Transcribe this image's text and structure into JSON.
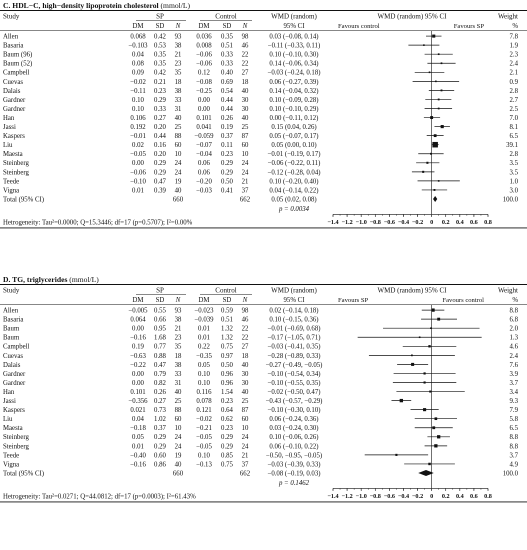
{
  "chart_data": [
    {
      "type": "forest",
      "title_bold": "C. HDL−C, high−density lipoprotein cholesterol",
      "title_unit": " (mmol/L)",
      "group_headers": [
        "SP",
        "Control",
        "WMD (random)",
        "WMD (random) 95% CI",
        "Weight"
      ],
      "col_headers": [
        "Study",
        "DM",
        "SD",
        "N",
        "DM",
        "SD",
        "N",
        "95% CI",
        "%"
      ],
      "favours_left": "Favours control",
      "favours_right": "Favours SP",
      "xlim": [
        -1.4,
        0.8
      ],
      "ticks": [
        -1.4,
        -1.2,
        -1.0,
        -0.8,
        -0.6,
        -0.4,
        -0.2,
        0,
        0.2,
        0.4,
        0.6,
        0.8
      ],
      "tick_labels": [
        "−1.4",
        "−1.2",
        "−1.0",
        "−0.8",
        "−0.6",
        "−0.4",
        "−0.2",
        "0",
        "0.2",
        "0.4",
        "0.6",
        "0.8"
      ],
      "studies": [
        {
          "name": "Allen",
          "sp_dm": "0.068",
          "sp_sd": "0.42",
          "sp_n": "93",
          "c_dm": "0.036",
          "c_sd": "0.35",
          "c_n": "98",
          "ci_text": "0.03 (−0.08, 0.14)",
          "weight": "7.8",
          "est": 0.03,
          "lo": -0.08,
          "hi": 0.14
        },
        {
          "name": "Basaria",
          "sp_dm": "−0.103",
          "sp_sd": "0.53",
          "sp_n": "38",
          "c_dm": "0.008",
          "c_sd": "0.51",
          "c_n": "46",
          "ci_text": "−0.11 (−0.33, 0.11)",
          "weight": "1.9",
          "est": -0.11,
          "lo": -0.33,
          "hi": 0.11
        },
        {
          "name": "Baum (96)",
          "sp_dm": "0.04",
          "sp_sd": "0.35",
          "sp_n": "21",
          "c_dm": "−0.06",
          "c_sd": "0.33",
          "c_n": "22",
          "ci_text": "0.10 (−0.10, 0.30)",
          "weight": "2.3",
          "est": 0.1,
          "lo": -0.1,
          "hi": 0.3
        },
        {
          "name": "Baum (52)",
          "sp_dm": "0.08",
          "sp_sd": "0.35",
          "sp_n": "23",
          "c_dm": "−0.06",
          "c_sd": "0.33",
          "c_n": "22",
          "ci_text": "0.14 (−0.06, 0.34)",
          "weight": "2.4",
          "est": 0.14,
          "lo": -0.06,
          "hi": 0.34
        },
        {
          "name": "Campbell",
          "sp_dm": "0.09",
          "sp_sd": "0.42",
          "sp_n": "35",
          "c_dm": "0.12",
          "c_sd": "0.40",
          "c_n": "27",
          "ci_text": "−0.03 (−0.24, 0.18)",
          "weight": "2.1",
          "est": -0.03,
          "lo": -0.24,
          "hi": 0.18
        },
        {
          "name": "Cuevas",
          "sp_dm": "−0.02",
          "sp_sd": "0.21",
          "sp_n": "18",
          "c_dm": "−0.08",
          "c_sd": "0.69",
          "c_n": "18",
          "ci_text": "0.06 (−0.27, 0.39)",
          "weight": "0.9",
          "est": 0.06,
          "lo": -0.27,
          "hi": 0.39
        },
        {
          "name": "Dalais",
          "sp_dm": "−0.11",
          "sp_sd": "0.23",
          "sp_n": "38",
          "c_dm": "−0.25",
          "c_sd": "0.54",
          "c_n": "40",
          "ci_text": "0.14 (−0.04, 0.32)",
          "weight": "2.8",
          "est": 0.14,
          "lo": -0.04,
          "hi": 0.32
        },
        {
          "name": "Gardner",
          "sp_dm": "0.10",
          "sp_sd": "0.29",
          "sp_n": "33",
          "c_dm": "0.00",
          "c_sd": "0.44",
          "c_n": "30",
          "ci_text": "0.10 (−0.09, 0.28)",
          "weight": "2.7",
          "est": 0.1,
          "lo": -0.09,
          "hi": 0.28
        },
        {
          "name": "Gardner",
          "sp_dm": "0.10",
          "sp_sd": "0.33",
          "sp_n": "31",
          "c_dm": "0.00",
          "c_sd": "0.44",
          "c_n": "30",
          "ci_text": "0.10 (−0.10, 0.29)",
          "weight": "2.5",
          "est": 0.1,
          "lo": -0.1,
          "hi": 0.29
        },
        {
          "name": "Han",
          "sp_dm": "0.106",
          "sp_sd": "0.27",
          "sp_n": "40",
          "c_dm": "0.101",
          "c_sd": "0.26",
          "c_n": "40",
          "ci_text": "0.00 (−0.11, 0.12)",
          "weight": "7.0",
          "est": 0.0,
          "lo": -0.11,
          "hi": 0.12
        },
        {
          "name": "Jassi",
          "sp_dm": "0.192",
          "sp_sd": "0.20",
          "sp_n": "25",
          "c_dm": "0.041",
          "c_sd": "0.19",
          "c_n": "25",
          "ci_text": "0.15 (0.04, 0.26)",
          "weight": "8.1",
          "est": 0.15,
          "lo": 0.04,
          "hi": 0.26
        },
        {
          "name": "Kaspers",
          "sp_dm": "−0.01",
          "sp_sd": "0.44",
          "sp_n": "88",
          "c_dm": "−0.059",
          "c_sd": "0.37",
          "c_n": "87",
          "ci_text": "0.05 (−0.07, 0.17)",
          "weight": "6.5",
          "est": 0.05,
          "lo": -0.07,
          "hi": 0.17
        },
        {
          "name": "Liu",
          "sp_dm": "0.02",
          "sp_sd": "0.16",
          "sp_n": "60",
          "c_dm": "−0.07",
          "c_sd": "0.11",
          "c_n": "60",
          "ci_text": "0.05 (0.00, 0.10)",
          "weight": "39.1",
          "est": 0.05,
          "lo": 0.0,
          "hi": 0.1
        },
        {
          "name": "Maesta",
          "sp_dm": "−0.05",
          "sp_sd": "0.20",
          "sp_n": "10",
          "c_dm": "−0.04",
          "c_sd": "0.23",
          "c_n": "10",
          "ci_text": "−0.01 (−0.19, 0.17)",
          "weight": "2.8",
          "est": -0.01,
          "lo": -0.19,
          "hi": 0.17
        },
        {
          "name": "Steinberg",
          "sp_dm": "0.00",
          "sp_sd": "0.29",
          "sp_n": "24",
          "c_dm": "0.06",
          "c_sd": "0.29",
          "c_n": "24",
          "ci_text": "−0.06 (−0.22, 0.11)",
          "weight": "3.5",
          "est": -0.06,
          "lo": -0.22,
          "hi": 0.11
        },
        {
          "name": "Steinberg",
          "sp_dm": "−0.06",
          "sp_sd": "0.29",
          "sp_n": "24",
          "c_dm": "0.06",
          "c_sd": "0.29",
          "c_n": "24",
          "ci_text": "−0.12 (−0.28, 0.04)",
          "weight": "3.5",
          "est": -0.12,
          "lo": -0.28,
          "hi": 0.04
        },
        {
          "name": "Teede",
          "sp_dm": "−0.10",
          "sp_sd": "0.47",
          "sp_n": "19",
          "c_dm": "−0.20",
          "c_sd": "0.50",
          "c_n": "21",
          "ci_text": "0.10 (−0.20, 0.40)",
          "weight": "1.0",
          "est": 0.1,
          "lo": -0.2,
          "hi": 0.4
        },
        {
          "name": "Vigna",
          "sp_dm": "0.01",
          "sp_sd": "0.39",
          "sp_n": "40",
          "c_dm": "−0.03",
          "c_sd": "0.41",
          "c_n": "37",
          "ci_text": "0.04 (−0.14, 0.22)",
          "weight": "3.0",
          "est": 0.04,
          "lo": -0.14,
          "hi": 0.22
        }
      ],
      "total": {
        "label": "Total (95% CI)",
        "sp_n": "660",
        "c_n": "662",
        "ci_text": "0.05 (0.02, 0.08)",
        "weight": "100.0",
        "est": 0.05,
        "lo": 0.02,
        "hi": 0.08
      },
      "p_label": "p = 0.0034",
      "heterogeneity": "Hetrogeneity: Tau²=0.0000; Q=15.3446; df=17 (p=0.5707); I²=0.00%"
    },
    {
      "type": "forest",
      "title_bold": "D. TG, triglycerides",
      "title_unit": " (mmol/L)",
      "group_headers": [
        "SP",
        "Control",
        "WMD (random)",
        "WMD (random) 95% CI",
        "Weight"
      ],
      "col_headers": [
        "Study",
        "DM",
        "SD",
        "N",
        "DM",
        "SD",
        "N",
        "95% CI",
        "%"
      ],
      "favours_left": "Favours SP",
      "favours_right": "Favours control",
      "xlim": [
        -1.4,
        0.8
      ],
      "ticks": [
        -1.4,
        -1.2,
        -1.0,
        -0.8,
        -0.6,
        -0.4,
        -0.2,
        0,
        0.2,
        0.4,
        0.6,
        0.8
      ],
      "tick_labels": [
        "−1.4",
        "−1.2",
        "−1.0",
        "−0.8",
        "−0.6",
        "−0.4",
        "−0.2",
        "0",
        "0.2",
        "0.4",
        "0.6",
        "0.8"
      ],
      "studies": [
        {
          "name": "Allen",
          "sp_dm": "−0.005",
          "sp_sd": "0.55",
          "sp_n": "93",
          "c_dm": "−0.023",
          "c_sd": "0.59",
          "c_n": "98",
          "ci_text": "0.02 (−0.14, 0.18)",
          "weight": "8.8",
          "est": 0.02,
          "lo": -0.14,
          "hi": 0.18
        },
        {
          "name": "Basaria",
          "sp_dm": "0.064",
          "sp_sd": "0.66",
          "sp_n": "38",
          "c_dm": "−0.039",
          "c_sd": "0.51",
          "c_n": "46",
          "ci_text": "0.10 (−0.15, 0.36)",
          "weight": "6.8",
          "est": 0.1,
          "lo": -0.15,
          "hi": 0.36
        },
        {
          "name": "Baum",
          "sp_dm": "0.00",
          "sp_sd": "0.95",
          "sp_n": "21",
          "c_dm": "0.01",
          "c_sd": "1.32",
          "c_n": "22",
          "ci_text": "−0.01 (−0.69, 0.68)",
          "weight": "2.0",
          "est": -0.01,
          "lo": -0.69,
          "hi": 0.68
        },
        {
          "name": "Baum",
          "sp_dm": "−0.16",
          "sp_sd": "1.68",
          "sp_n": "23",
          "c_dm": "0.01",
          "c_sd": "1.32",
          "c_n": "22",
          "ci_text": "−0.17 (−1.05, 0.71)",
          "weight": "1.3",
          "est": -0.17,
          "lo": -1.05,
          "hi": 0.71
        },
        {
          "name": "Campbell",
          "sp_dm": "0.19",
          "sp_sd": "0.77",
          "sp_n": "35",
          "c_dm": "0.22",
          "c_sd": "0.75",
          "c_n": "27",
          "ci_text": "−0.03 (−0.41, 0.35)",
          "weight": "4.6",
          "est": -0.03,
          "lo": -0.41,
          "hi": 0.35
        },
        {
          "name": "Cuevas",
          "sp_dm": "−0.63",
          "sp_sd": "0.88",
          "sp_n": "18",
          "c_dm": "−0.35",
          "c_sd": "0.97",
          "c_n": "18",
          "ci_text": "−0.28 (−0.89, 0.33)",
          "weight": "2.4",
          "est": -0.28,
          "lo": -0.89,
          "hi": 0.33
        },
        {
          "name": "Dalais",
          "sp_dm": "−0.22",
          "sp_sd": "0.47",
          "sp_n": "38",
          "c_dm": "0.05",
          "c_sd": "0.50",
          "c_n": "40",
          "ci_text": "−0.27 (−0.49, −0.05)",
          "weight": "7.6",
          "est": -0.27,
          "lo": -0.49,
          "hi": -0.05
        },
        {
          "name": "Gardner",
          "sp_dm": "0.00",
          "sp_sd": "0.79",
          "sp_n": "33",
          "c_dm": "0.10",
          "c_sd": "0.96",
          "c_n": "30",
          "ci_text": "−0.10 (−0.54, 0.34)",
          "weight": "3.9",
          "est": -0.1,
          "lo": -0.54,
          "hi": 0.34
        },
        {
          "name": "Gardner",
          "sp_dm": "0.00",
          "sp_sd": "0.82",
          "sp_n": "31",
          "c_dm": "0.10",
          "c_sd": "0.96",
          "c_n": "30",
          "ci_text": "−0.10 (−0.55, 0.35)",
          "weight": "3.7",
          "est": -0.1,
          "lo": -0.55,
          "hi": 0.35
        },
        {
          "name": "Han",
          "sp_dm": "0.101",
          "sp_sd": "0.26",
          "sp_n": "40",
          "c_dm": "0.116",
          "c_sd": "1.54",
          "c_n": "40",
          "ci_text": "−0.02 (−0.50, 0.47)",
          "weight": "3.4",
          "est": -0.02,
          "lo": -0.5,
          "hi": 0.47
        },
        {
          "name": "Jassi",
          "sp_dm": "−0.356",
          "sp_sd": "0.27",
          "sp_n": "25",
          "c_dm": "0.078",
          "c_sd": "0.23",
          "c_n": "25",
          "ci_text": "−0.43 (−0.57, −0.29)",
          "weight": "9.3",
          "est": -0.43,
          "lo": -0.57,
          "hi": -0.29
        },
        {
          "name": "Kaspers",
          "sp_dm": "0.021",
          "sp_sd": "0.73",
          "sp_n": "88",
          "c_dm": "0.121",
          "c_sd": "0.64",
          "c_n": "87",
          "ci_text": "−0.10 (−0.30, 0.10)",
          "weight": "7.9",
          "est": -0.1,
          "lo": -0.3,
          "hi": 0.1
        },
        {
          "name": "Liu",
          "sp_dm": "0.04",
          "sp_sd": "1.02",
          "sp_n": "60",
          "c_dm": "−0.02",
          "c_sd": "0.62",
          "c_n": "60",
          "ci_text": "0.06 (−0.24, 0.36)",
          "weight": "5.8",
          "est": 0.06,
          "lo": -0.24,
          "hi": 0.36
        },
        {
          "name": "Maesta",
          "sp_dm": "−0.18",
          "sp_sd": "0.37",
          "sp_n": "10",
          "c_dm": "−0.21",
          "c_sd": "0.23",
          "c_n": "10",
          "ci_text": "0.03 (−0.24, 0.30)",
          "weight": "6.5",
          "est": 0.03,
          "lo": -0.24,
          "hi": 0.3
        },
        {
          "name": "Steinberg",
          "sp_dm": "0.05",
          "sp_sd": "0.29",
          "sp_n": "24",
          "c_dm": "−0.05",
          "c_sd": "0.29",
          "c_n": "24",
          "ci_text": "0.10 (−0.06, 0.26)",
          "weight": "8.8",
          "est": 0.1,
          "lo": -0.06,
          "hi": 0.26
        },
        {
          "name": "Steinberg",
          "sp_dm": "0.01",
          "sp_sd": "0.29",
          "sp_n": "24",
          "c_dm": "−0.05",
          "c_sd": "0.29",
          "c_n": "24",
          "ci_text": "0.06 (−0.10, 0.22)",
          "weight": "8.8",
          "est": 0.06,
          "lo": -0.1,
          "hi": 0.22
        },
        {
          "name": "Teede",
          "sp_dm": "−0.40",
          "sp_sd": "0.60",
          "sp_n": "19",
          "c_dm": "0.10",
          "c_sd": "0.85",
          "c_n": "21",
          "ci_text": "−0.50, −0.95, −0.05)",
          "weight": "3.7",
          "est": -0.5,
          "lo": -0.95,
          "hi": -0.05
        },
        {
          "name": "Vigna",
          "sp_dm": "−0.16",
          "sp_sd": "0.86",
          "sp_n": "40",
          "c_dm": "−0.13",
          "c_sd": "0.75",
          "c_n": "37",
          "ci_text": "−0.03 (−0.39, 0.33)",
          "weight": "4.9",
          "est": -0.03,
          "lo": -0.39,
          "hi": 0.33
        }
      ],
      "total": {
        "label": "Total (95% CI)",
        "sp_n": "660",
        "c_n": "662",
        "ci_text": "−0.08 (−0.19, 0.03)",
        "weight": "100.0",
        "est": -0.08,
        "lo": -0.19,
        "hi": 0.03
      },
      "p_label": "p = 0.1462",
      "heterogeneity": "Hetrogeneity: Tau²=0.0271; Q=44.0812; df=17 (p=0.0003); I²=61.43%"
    }
  ]
}
